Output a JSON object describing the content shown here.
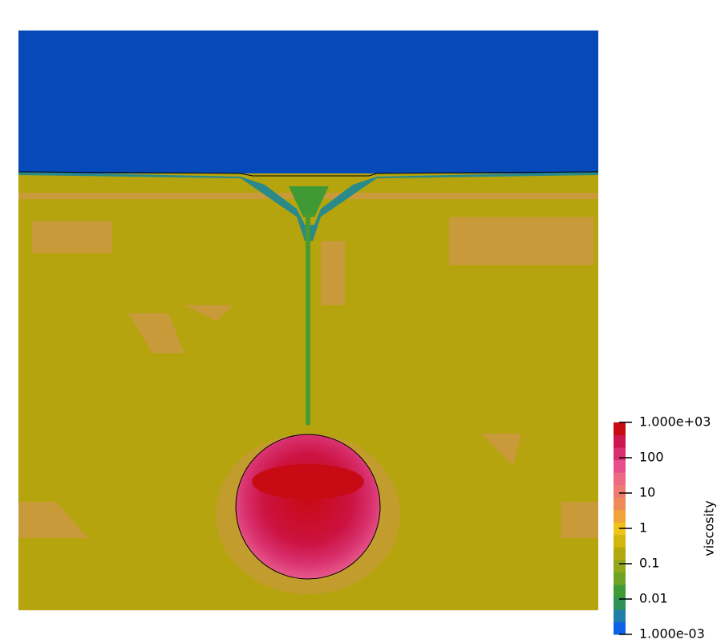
{
  "colorbar": {
    "title": "viscosity",
    "scale": "log",
    "lim": [
      0.001,
      1000
    ],
    "ticks": [
      {
        "value": 0.001,
        "label": "1.000e-03"
      },
      0.01,
      0.1,
      1,
      10,
      100,
      {
        "value": 1000,
        "label": "1.000e+03"
      }
    ],
    "colors": [
      "#0b62e6",
      "#1f7fa8",
      "#2e9158",
      "#3f9a36",
      "#6ea326",
      "#93a71a",
      "#b3a80f",
      "#d2b60c",
      "#f0c21c",
      "#f2a23a",
      "#f08a58",
      "#ee7a72",
      "#ec6a86",
      "#e64e8e",
      "#d8306e",
      "#cc1650",
      "#c80a14"
    ]
  }
}
